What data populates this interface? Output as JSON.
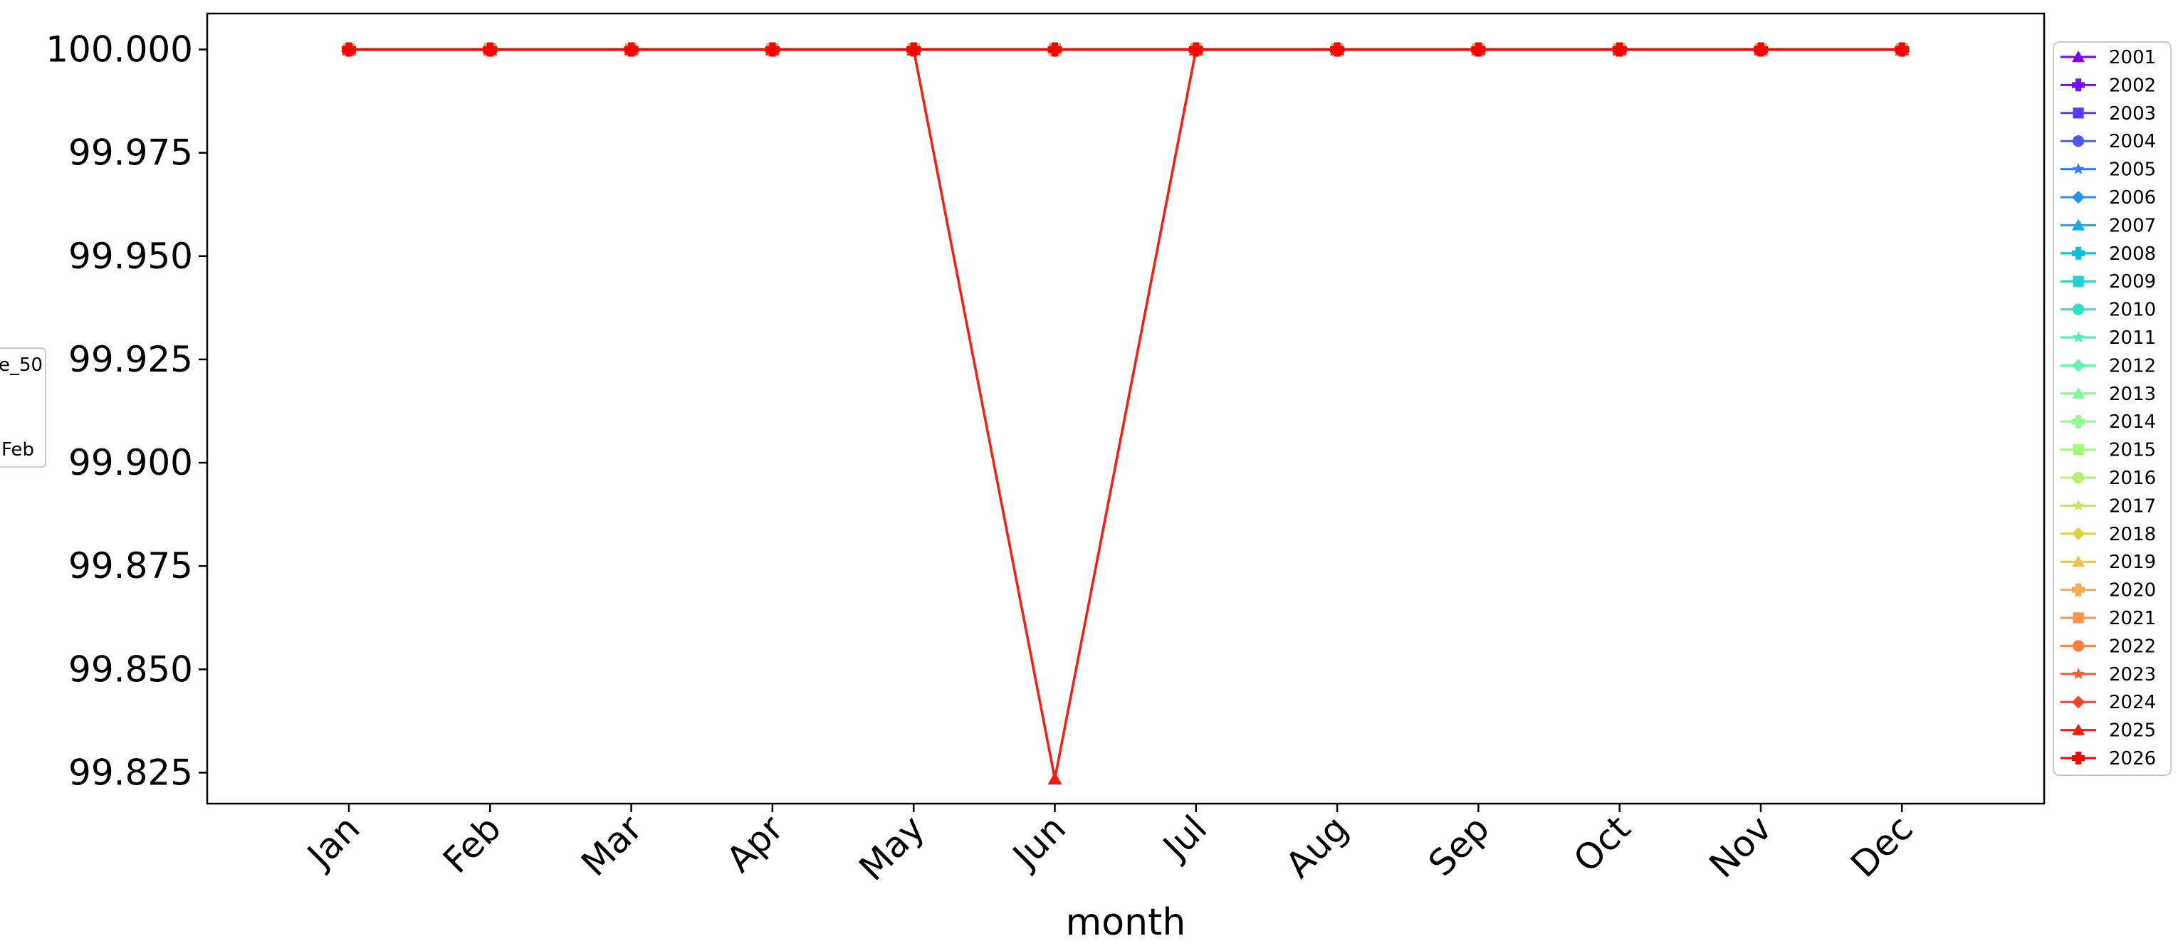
{
  "chart_data": {
    "type": "line",
    "title": "",
    "xlabel": "month",
    "ylabel": "",
    "categories": [
      "Jan",
      "Feb",
      "Mar",
      "Apr",
      "May",
      "Jun",
      "Jul",
      "Aug",
      "Sep",
      "Oct",
      "Nov",
      "Dec"
    ],
    "ylim": [
      99.8175,
      100.0087
    ],
    "yticks": [
      "99.825",
      "99.850",
      "99.875",
      "99.900",
      "99.925",
      "99.950",
      "99.975",
      "100.000"
    ],
    "legend_placement": "right, outside plot",
    "series": [
      {
        "name": "2001",
        "color": "#8000ff",
        "marker": "triangle",
        "values": [
          100,
          100,
          100,
          100,
          100,
          100,
          100,
          100,
          100,
          100,
          100,
          100
        ]
      },
      {
        "name": "2002",
        "color": "#7010ff",
        "marker": "plus",
        "values": [
          100,
          100,
          100,
          100,
          100,
          100,
          100,
          100,
          100,
          100,
          100,
          100
        ]
      },
      {
        "name": "2003",
        "color": "#5a3bfe",
        "marker": "square",
        "values": [
          100,
          100,
          100,
          100,
          100,
          100,
          100,
          100,
          100,
          100,
          100,
          100
        ]
      },
      {
        "name": "2004",
        "color": "#4a58fb",
        "marker": "circle",
        "values": [
          100,
          100,
          100,
          100,
          100,
          100,
          100,
          100,
          100,
          100,
          100,
          100
        ]
      },
      {
        "name": "2005",
        "color": "#3479f5",
        "marker": "star",
        "values": [
          100,
          100,
          100,
          100,
          100,
          100,
          100,
          100,
          100,
          100,
          100,
          100
        ]
      },
      {
        "name": "2006",
        "color": "#2092ee",
        "marker": "diamond",
        "values": [
          100,
          100,
          100,
          100,
          100,
          100,
          100,
          100,
          100,
          100,
          100,
          100
        ]
      },
      {
        "name": "2007",
        "color": "#0eade5",
        "marker": "triangle",
        "values": [
          100,
          100,
          100,
          100,
          100,
          100,
          100,
          100,
          100,
          100,
          100,
          100
        ]
      },
      {
        "name": "2008",
        "color": "#06c2dc",
        "marker": "plus",
        "values": [
          100,
          100,
          100,
          100,
          100,
          100,
          100,
          100,
          100,
          100,
          100,
          100
        ]
      },
      {
        "name": "2009",
        "color": "#20d3d3",
        "marker": "square",
        "values": [
          100,
          100,
          100,
          100,
          100,
          100,
          100,
          100,
          100,
          100,
          100,
          100
        ]
      },
      {
        "name": "2010",
        "color": "#32dfc8",
        "marker": "circle",
        "values": [
          100,
          100,
          100,
          100,
          100,
          100,
          100,
          100,
          100,
          100,
          100,
          100
        ]
      },
      {
        "name": "2011",
        "color": "#4cedb9",
        "marker": "star",
        "values": [
          100,
          100,
          100,
          100,
          100,
          100,
          100,
          100,
          100,
          100,
          100,
          100
        ]
      },
      {
        "name": "2012",
        "color": "#5ef6ac",
        "marker": "diamond",
        "values": [
          100,
          100,
          100,
          100,
          100,
          100,
          100,
          100,
          100,
          100,
          100,
          100
        ]
      },
      {
        "name": "2013",
        "color": "#7efa9c",
        "marker": "triangle",
        "values": [
          100,
          100,
          100,
          100,
          100,
          100,
          100,
          100,
          100,
          100,
          100,
          100
        ]
      },
      {
        "name": "2014",
        "color": "#92fd8f",
        "marker": "plus",
        "values": [
          100,
          100,
          100,
          100,
          100,
          100,
          100,
          100,
          100,
          100,
          100,
          100
        ]
      },
      {
        "name": "2015",
        "color": "#a4f97f",
        "marker": "square",
        "values": [
          100,
          100,
          100,
          100,
          100,
          100,
          100,
          100,
          100,
          100,
          100,
          100
        ]
      },
      {
        "name": "2016",
        "color": "#b4f270",
        "marker": "circle",
        "values": [
          100,
          100,
          100,
          100,
          100,
          100,
          100,
          100,
          100,
          100,
          100,
          100
        ]
      },
      {
        "name": "2017",
        "color": "#c8e55f",
        "marker": "star",
        "values": [
          100,
          100,
          100,
          100,
          100,
          100,
          100,
          100,
          100,
          100,
          100,
          100
        ]
      },
      {
        "name": "2018",
        "color": "#dcd03f",
        "marker": "diamond",
        "values": [
          100,
          100,
          100,
          100,
          100,
          100,
          100,
          100,
          100,
          100,
          100,
          100
        ]
      },
      {
        "name": "2019",
        "color": "#eec052",
        "marker": "triangle",
        "values": [
          100,
          100,
          100,
          100,
          100,
          100,
          100,
          100,
          100,
          100,
          100,
          100
        ]
      },
      {
        "name": "2020",
        "color": "#fbaa4e",
        "marker": "plus",
        "values": [
          100,
          100,
          100,
          100,
          100,
          100,
          100,
          100,
          100,
          100,
          100,
          100
        ]
      },
      {
        "name": "2021",
        "color": "#fe9447",
        "marker": "square",
        "values": [
          100,
          100,
          100,
          100,
          100,
          100,
          100,
          100,
          100,
          100,
          100,
          100
        ]
      },
      {
        "name": "2022",
        "color": "#fe7c3f",
        "marker": "circle",
        "values": [
          100,
          100,
          100,
          100,
          100,
          100,
          100,
          100,
          100,
          100,
          100,
          100
        ]
      },
      {
        "name": "2023",
        "color": "#ff5d31",
        "marker": "star",
        "values": [
          100,
          100,
          100,
          100,
          100,
          100,
          100,
          100,
          100,
          100,
          100,
          100
        ]
      },
      {
        "name": "2024",
        "color": "#ff4022",
        "marker": "diamond",
        "values": [
          100,
          100,
          100,
          100,
          100,
          100,
          100,
          100,
          100,
          100,
          100,
          100
        ]
      },
      {
        "name": "2025",
        "color": "#ff1a0f",
        "marker": "triangle",
        "values": [
          100,
          100,
          100,
          100,
          100,
          99.8235,
          100,
          100,
          100,
          100,
          100,
          100
        ]
      },
      {
        "name": "2026",
        "color": "#ff0000",
        "marker": "plus",
        "values": [
          100,
          100,
          100,
          100,
          100,
          100,
          100,
          100,
          100,
          100,
          100,
          100
        ]
      }
    ]
  },
  "secondary_legend": {
    "lines": [
      "e_50",
      "Feb"
    ]
  }
}
